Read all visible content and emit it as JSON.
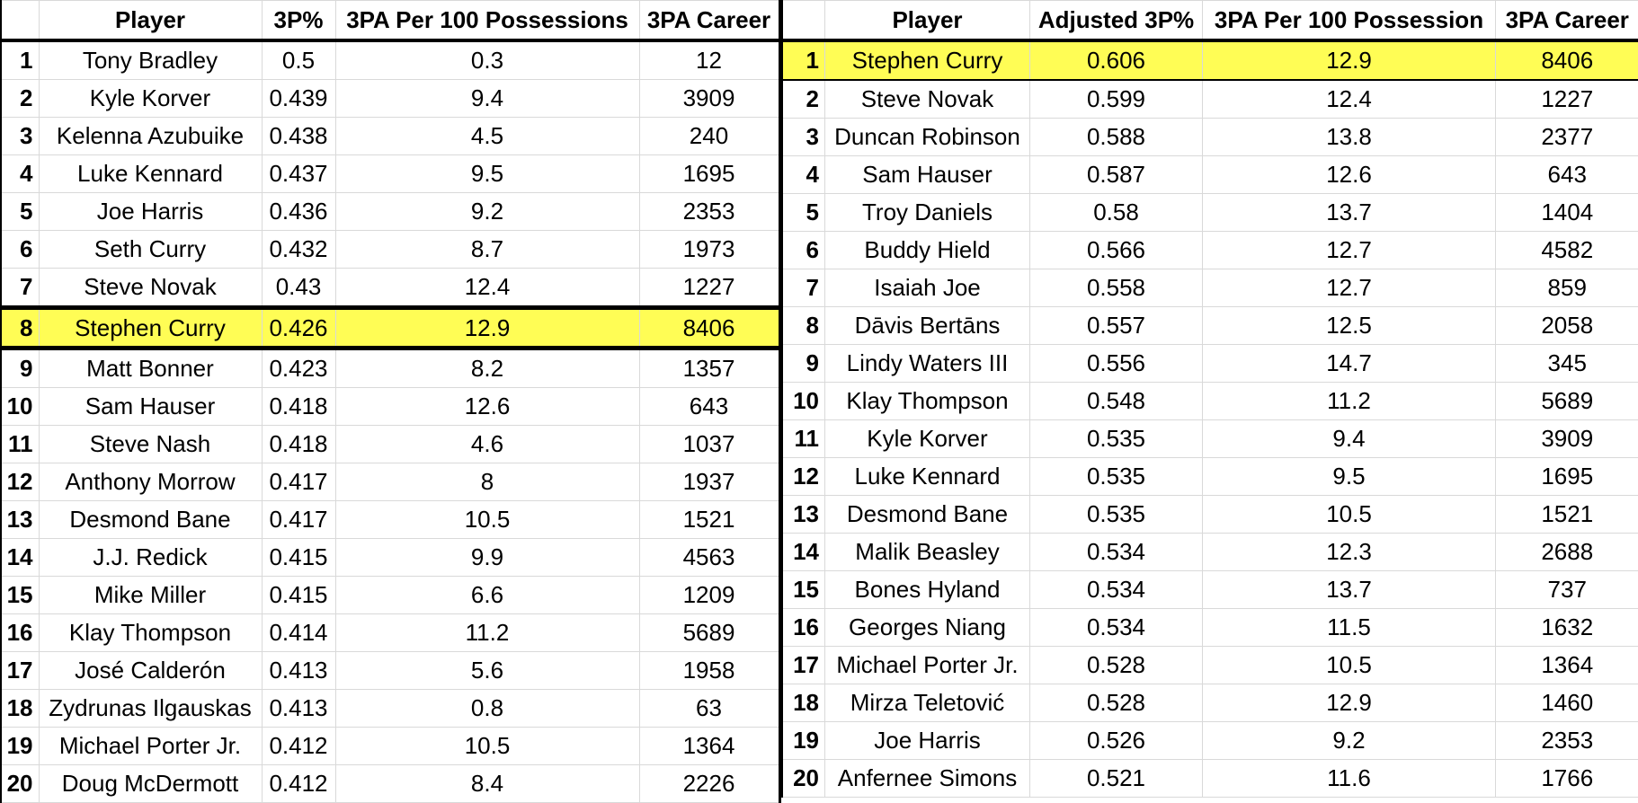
{
  "left_table": {
    "headers": [
      "",
      "Player",
      "3P%",
      "3PA Per 100 Possessions",
      "3PA Career"
    ],
    "highlight_rank": "8",
    "rows": [
      {
        "rank": "1",
        "player": "Tony Bradley",
        "pct": "0.5",
        "per100": "0.3",
        "career": "12"
      },
      {
        "rank": "2",
        "player": "Kyle Korver",
        "pct": "0.439",
        "per100": "9.4",
        "career": "3909"
      },
      {
        "rank": "3",
        "player": "Kelenna Azubuike",
        "pct": "0.438",
        "per100": "4.5",
        "career": "240"
      },
      {
        "rank": "4",
        "player": "Luke Kennard",
        "pct": "0.437",
        "per100": "9.5",
        "career": "1695"
      },
      {
        "rank": "5",
        "player": "Joe Harris",
        "pct": "0.436",
        "per100": "9.2",
        "career": "2353"
      },
      {
        "rank": "6",
        "player": "Seth Curry",
        "pct": "0.432",
        "per100": "8.7",
        "career": "1973"
      },
      {
        "rank": "7",
        "player": "Steve Novak",
        "pct": "0.43",
        "per100": "12.4",
        "career": "1227"
      },
      {
        "rank": "8",
        "player": "Stephen Curry",
        "pct": "0.426",
        "per100": "12.9",
        "career": "8406"
      },
      {
        "rank": "9",
        "player": "Matt Bonner",
        "pct": "0.423",
        "per100": "8.2",
        "career": "1357"
      },
      {
        "rank": "10",
        "player": "Sam Hauser",
        "pct": "0.418",
        "per100": "12.6",
        "career": "643"
      },
      {
        "rank": "11",
        "player": "Steve Nash",
        "pct": "0.418",
        "per100": "4.6",
        "career": "1037"
      },
      {
        "rank": "12",
        "player": "Anthony Morrow",
        "pct": "0.417",
        "per100": "8",
        "career": "1937"
      },
      {
        "rank": "13",
        "player": "Desmond Bane",
        "pct": "0.417",
        "per100": "10.5",
        "career": "1521"
      },
      {
        "rank": "14",
        "player": "J.J. Redick",
        "pct": "0.415",
        "per100": "9.9",
        "career": "4563"
      },
      {
        "rank": "15",
        "player": "Mike Miller",
        "pct": "0.415",
        "per100": "6.6",
        "career": "1209"
      },
      {
        "rank": "16",
        "player": "Klay Thompson",
        "pct": "0.414",
        "per100": "11.2",
        "career": "5689"
      },
      {
        "rank": "17",
        "player": "José Calderón",
        "pct": "0.413",
        "per100": "5.6",
        "career": "1958"
      },
      {
        "rank": "18",
        "player": "Zydrunas Ilgauskas",
        "pct": "0.413",
        "per100": "0.8",
        "career": "63"
      },
      {
        "rank": "19",
        "player": "Michael Porter Jr.",
        "pct": "0.412",
        "per100": "10.5",
        "career": "1364"
      },
      {
        "rank": "20",
        "player": "Doug McDermott",
        "pct": "0.412",
        "per100": "8.4",
        "career": "2226"
      }
    ]
  },
  "right_table": {
    "headers": [
      "",
      "Player",
      "Adjusted 3P%",
      "3PA Per 100 Possession",
      "3PA Career"
    ],
    "highlight_rank": "1",
    "rows": [
      {
        "rank": "1",
        "player": "Stephen Curry",
        "pct": "0.606",
        "per100": "12.9",
        "career": "8406"
      },
      {
        "rank": "2",
        "player": "Steve Novak",
        "pct": "0.599",
        "per100": "12.4",
        "career": "1227"
      },
      {
        "rank": "3",
        "player": "Duncan Robinson",
        "pct": "0.588",
        "per100": "13.8",
        "career": "2377"
      },
      {
        "rank": "4",
        "player": "Sam Hauser",
        "pct": "0.587",
        "per100": "12.6",
        "career": "643"
      },
      {
        "rank": "5",
        "player": "Troy Daniels",
        "pct": "0.58",
        "per100": "13.7",
        "career": "1404"
      },
      {
        "rank": "6",
        "player": "Buddy Hield",
        "pct": "0.566",
        "per100": "12.7",
        "career": "4582"
      },
      {
        "rank": "7",
        "player": "Isaiah Joe",
        "pct": "0.558",
        "per100": "12.7",
        "career": "859"
      },
      {
        "rank": "8",
        "player": "Dāvis Bertāns",
        "pct": "0.557",
        "per100": "12.5",
        "career": "2058"
      },
      {
        "rank": "9",
        "player": "Lindy Waters III",
        "pct": "0.556",
        "per100": "14.7",
        "career": "345"
      },
      {
        "rank": "10",
        "player": "Klay Thompson",
        "pct": "0.548",
        "per100": "11.2",
        "career": "5689"
      },
      {
        "rank": "11",
        "player": "Kyle Korver",
        "pct": "0.535",
        "per100": "9.4",
        "career": "3909"
      },
      {
        "rank": "12",
        "player": "Luke Kennard",
        "pct": "0.535",
        "per100": "9.5",
        "career": "1695"
      },
      {
        "rank": "13",
        "player": "Desmond Bane",
        "pct": "0.535",
        "per100": "10.5",
        "career": "1521"
      },
      {
        "rank": "14",
        "player": "Malik Beasley",
        "pct": "0.534",
        "per100": "12.3",
        "career": "2688"
      },
      {
        "rank": "15",
        "player": "Bones Hyland",
        "pct": "0.534",
        "per100": "13.7",
        "career": "737"
      },
      {
        "rank": "16",
        "player": "Georges Niang",
        "pct": "0.534",
        "per100": "11.5",
        "career": "1632"
      },
      {
        "rank": "17",
        "player": "Michael Porter Jr.",
        "pct": "0.528",
        "per100": "10.5",
        "career": "1364"
      },
      {
        "rank": "18",
        "player": "Mirza Teletović",
        "pct": "0.528",
        "per100": "12.9",
        "career": "1460"
      },
      {
        "rank": "19",
        "player": "Joe Harris",
        "pct": "0.526",
        "per100": "9.2",
        "career": "2353"
      },
      {
        "rank": "20",
        "player": "Anfernee Simons",
        "pct": "0.521",
        "per100": "11.6",
        "career": "1766"
      }
    ]
  },
  "colors": {
    "highlight": "#fffd55",
    "grid": "#d9d9d9",
    "border": "#000000"
  }
}
